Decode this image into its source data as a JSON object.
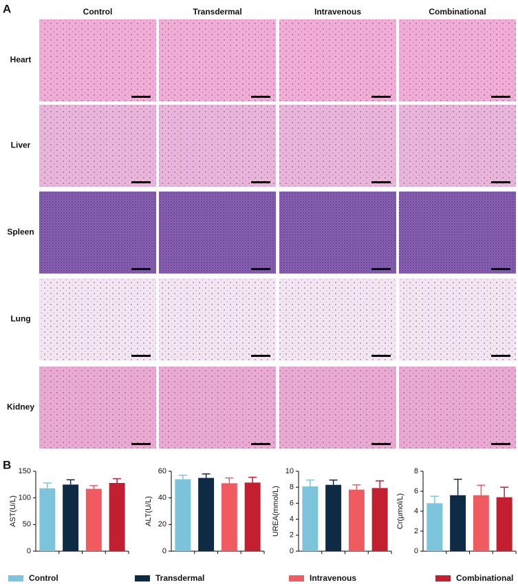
{
  "panel_a": {
    "label": "A",
    "columns": [
      "Control",
      "Transdermal",
      "Intravenous",
      "Combinational"
    ],
    "rows": [
      "Heart",
      "Liver",
      "Spleen",
      "Lung",
      "Kidney"
    ]
  },
  "panel_b_label": "B",
  "legend": [
    {
      "name": "Control",
      "color": "#7cc3dc"
    },
    {
      "name": "Transdermal",
      "color": "#0f2a45"
    },
    {
      "name": "Intravenous",
      "color": "#ef5b60"
    },
    {
      "name": "Combinational",
      "color": "#c21f30"
    }
  ],
  "chart_data": [
    {
      "type": "bar",
      "y_label": "AST(U/L)",
      "values": [
        118,
        125,
        117,
        128
      ],
      "errors": [
        10,
        9,
        6,
        8
      ],
      "ylim": [
        0,
        150
      ],
      "yticks": [
        0,
        50,
        100,
        150
      ]
    },
    {
      "type": "bar",
      "y_label": "ALT(U/L)",
      "values": [
        54,
        55,
        51,
        51.5
      ],
      "errors": [
        3,
        3,
        4,
        4
      ],
      "ylim": [
        0,
        60
      ],
      "yticks": [
        0,
        20,
        40,
        60
      ]
    },
    {
      "type": "bar",
      "y_label": "UREA(mmol/L)",
      "values": [
        8.1,
        8.3,
        7.7,
        7.9
      ],
      "errors": [
        0.8,
        0.6,
        0.6,
        0.9
      ],
      "ylim": [
        0,
        10
      ],
      "yticks": [
        0,
        2,
        4,
        6,
        8,
        10
      ]
    },
    {
      "type": "bar",
      "y_label": "Cr(μmol/L)",
      "values": [
        4.8,
        5.6,
        5.6,
        5.4
      ],
      "errors": [
        0.7,
        1.6,
        1.0,
        1.0
      ],
      "ylim": [
        0,
        8
      ],
      "yticks": [
        0,
        2,
        4,
        6,
        8
      ]
    }
  ]
}
